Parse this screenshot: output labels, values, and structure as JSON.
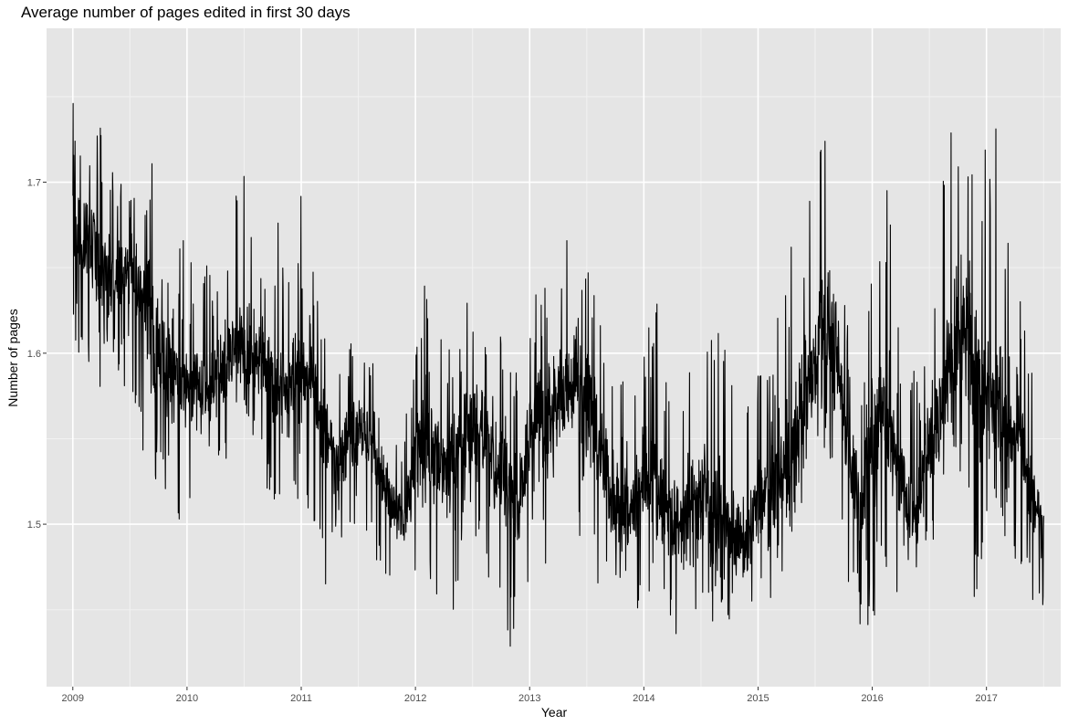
{
  "chart_data": {
    "type": "line",
    "title": "Average number of pages edited in first 30 days",
    "xlabel": "Year",
    "ylabel": "Number of pages",
    "xlim": [
      2008.77,
      2017.65
    ],
    "ylim": [
      1.405,
      1.79
    ],
    "x_ticks": [
      "2009",
      "2010",
      "2011",
      "2012",
      "2013",
      "2014",
      "2015",
      "2016",
      "2017"
    ],
    "y_ticks": [
      "1.5",
      "1.6",
      "1.7"
    ],
    "grid": true,
    "background": "#e5e5e5",
    "grid_color": "#ffffff",
    "line_color": "#000000",
    "series": [
      {
        "x": [
          2009.0,
          2009.1,
          2009.2,
          2009.3,
          2009.4,
          2009.5,
          2009.6,
          2009.7,
          2009.8,
          2009.9,
          2010.0,
          2010.1,
          2010.2,
          2010.3,
          2010.4,
          2010.5,
          2010.6,
          2010.7,
          2010.8,
          2010.9,
          2011.0,
          2011.1,
          2011.2,
          2011.3,
          2011.4,
          2011.5,
          2011.6,
          2011.7,
          2011.8,
          2011.9,
          2012.0,
          2012.1,
          2012.2,
          2012.3,
          2012.4,
          2012.5,
          2012.6,
          2012.7,
          2012.8,
          2012.9,
          2013.0,
          2013.1,
          2013.2,
          2013.3,
          2013.4,
          2013.5,
          2013.6,
          2013.7,
          2013.8,
          2013.9,
          2014.0,
          2014.1,
          2014.2,
          2014.3,
          2014.4,
          2014.5,
          2014.6,
          2014.7,
          2014.8,
          2014.9,
          2015.0,
          2015.1,
          2015.2,
          2015.3,
          2015.4,
          2015.5,
          2015.6,
          2015.7,
          2015.8,
          2015.9,
          2016.0,
          2016.1,
          2016.2,
          2016.3,
          2016.4,
          2016.5,
          2016.6,
          2016.7,
          2016.8,
          2016.9,
          2017.0,
          2017.1,
          2017.2,
          2017.3,
          2017.4,
          2017.5
        ],
        "mean": [
          1.67,
          1.67,
          1.66,
          1.64,
          1.64,
          1.65,
          1.63,
          1.61,
          1.6,
          1.59,
          1.58,
          1.58,
          1.58,
          1.59,
          1.6,
          1.6,
          1.6,
          1.59,
          1.58,
          1.58,
          1.6,
          1.58,
          1.55,
          1.54,
          1.55,
          1.56,
          1.55,
          1.53,
          1.51,
          1.5,
          1.54,
          1.55,
          1.54,
          1.53,
          1.55,
          1.56,
          1.55,
          1.53,
          1.52,
          1.51,
          1.55,
          1.56,
          1.56,
          1.58,
          1.59,
          1.57,
          1.55,
          1.52,
          1.51,
          1.51,
          1.53,
          1.52,
          1.51,
          1.5,
          1.51,
          1.52,
          1.51,
          1.5,
          1.49,
          1.49,
          1.51,
          1.52,
          1.53,
          1.54,
          1.57,
          1.6,
          1.62,
          1.6,
          1.54,
          1.51,
          1.55,
          1.57,
          1.54,
          1.51,
          1.51,
          1.55,
          1.56,
          1.6,
          1.62,
          1.58,
          1.58,
          1.57,
          1.56,
          1.55,
          1.51,
          1.5
        ],
        "max": [
          1.75,
          1.75,
          1.73,
          1.74,
          1.72,
          1.71,
          1.68,
          1.74,
          1.67,
          1.67,
          1.67,
          1.65,
          1.66,
          1.67,
          1.7,
          1.71,
          1.67,
          1.65,
          1.68,
          1.65,
          1.7,
          1.65,
          1.61,
          1.62,
          1.61,
          1.61,
          1.6,
          1.58,
          1.57,
          1.56,
          1.6,
          1.65,
          1.62,
          1.61,
          1.64,
          1.64,
          1.62,
          1.59,
          1.65,
          1.59,
          1.63,
          1.64,
          1.65,
          1.67,
          1.68,
          1.66,
          1.63,
          1.59,
          1.62,
          1.58,
          1.6,
          1.65,
          1.59,
          1.58,
          1.6,
          1.63,
          1.61,
          1.64,
          1.57,
          1.57,
          1.59,
          1.6,
          1.63,
          1.67,
          1.7,
          1.72,
          1.77,
          1.69,
          1.61,
          1.6,
          1.68,
          1.74,
          1.64,
          1.59,
          1.6,
          1.65,
          1.71,
          1.74,
          1.73,
          1.75,
          1.72,
          1.77,
          1.66,
          1.63,
          1.59,
          1.56
        ],
        "min": [
          1.6,
          1.59,
          1.57,
          1.57,
          1.58,
          1.58,
          1.54,
          1.52,
          1.52,
          1.48,
          1.5,
          1.52,
          1.52,
          1.52,
          1.54,
          1.55,
          1.55,
          1.52,
          1.51,
          1.52,
          1.51,
          1.5,
          1.45,
          1.48,
          1.49,
          1.5,
          1.49,
          1.47,
          1.46,
          1.45,
          1.46,
          1.47,
          1.45,
          1.44,
          1.47,
          1.48,
          1.47,
          1.46,
          1.42,
          1.43,
          1.47,
          1.46,
          1.45,
          1.48,
          1.5,
          1.48,
          1.46,
          1.45,
          1.45,
          1.45,
          1.45,
          1.44,
          1.44,
          1.43,
          1.45,
          1.45,
          1.44,
          1.44,
          1.44,
          1.45,
          1.44,
          1.44,
          1.47,
          1.48,
          1.49,
          1.51,
          1.53,
          1.5,
          1.45,
          1.44,
          1.44,
          1.46,
          1.45,
          1.44,
          1.45,
          1.48,
          1.48,
          1.52,
          1.53,
          1.45,
          1.5,
          1.51,
          1.48,
          1.47,
          1.45,
          1.43
        ]
      }
    ]
  }
}
